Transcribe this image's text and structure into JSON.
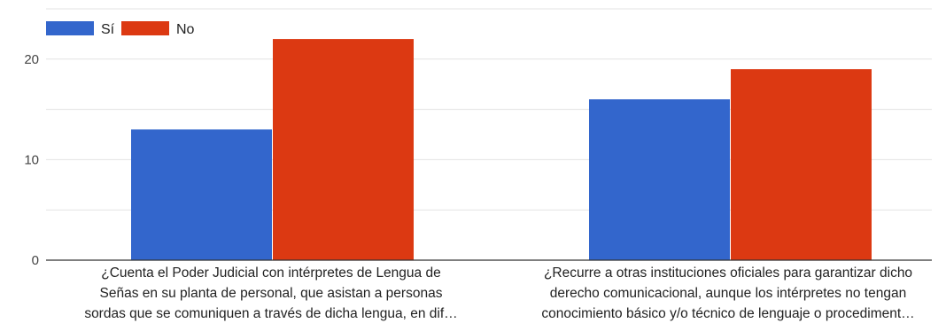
{
  "chart_data": {
    "type": "bar",
    "title": "",
    "xlabel": "",
    "ylabel": "",
    "ylim": [
      0,
      25
    ],
    "yticks": [
      0,
      10,
      20
    ],
    "grid": true,
    "legend_position": "top-left",
    "categories": [
      [
        "¿Cuenta el Poder Judicial con intérpretes de Lengua de",
        "Señas en su planta de personal, que asistan a personas",
        "sordas que se comuniquen a través de dicha lengua, en dif…"
      ],
      [
        "¿Recurre a otras instituciones oficiales para garantizar dicho",
        "derecho comunicacional, aunque los intérpretes no tengan",
        "conocimiento básico y/o técnico de lenguaje o procediment…"
      ]
    ],
    "series": [
      {
        "name": "Sí",
        "color": "#3366cc",
        "values": [
          13,
          16
        ]
      },
      {
        "name": "No",
        "color": "#dc3912",
        "values": [
          22,
          19
        ]
      }
    ]
  }
}
